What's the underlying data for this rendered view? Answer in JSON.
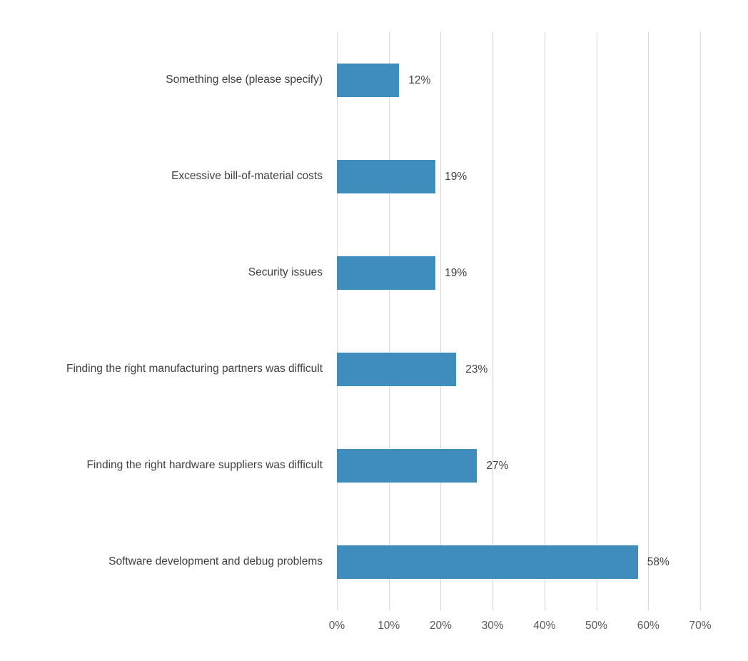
{
  "chart_data": {
    "type": "bar",
    "orientation": "horizontal",
    "title": "",
    "xlabel": "",
    "ylabel": "",
    "categories": [
      "Something else (please specify)",
      "Excessive bill-of-material costs",
      "Security issues",
      "Finding the right manufacturing partners was difficult",
      "Finding the right hardware suppliers was difficult",
      "Software development and debug problems"
    ],
    "values": [
      12,
      19,
      19,
      23,
      27,
      58
    ],
    "value_labels": [
      "12%",
      "19%",
      "19%",
      "23%",
      "27%",
      "58%"
    ],
    "x_tick_values": [
      0,
      10,
      20,
      30,
      40,
      50,
      60,
      70
    ],
    "x_tick_labels": [
      "0%",
      "10%",
      "20%",
      "30%",
      "40%",
      "50%",
      "60%",
      "70%"
    ],
    "xlim": [
      0,
      70
    ],
    "grid": "vertical-only",
    "legend": "none",
    "colors": {
      "bar_fill": "#3e8dbd",
      "gridline": "#d9d9d9",
      "category_label_text": "#404040",
      "value_label_text": "#404040",
      "tick_label_text": "#595959",
      "background": "#ffffff"
    }
  }
}
